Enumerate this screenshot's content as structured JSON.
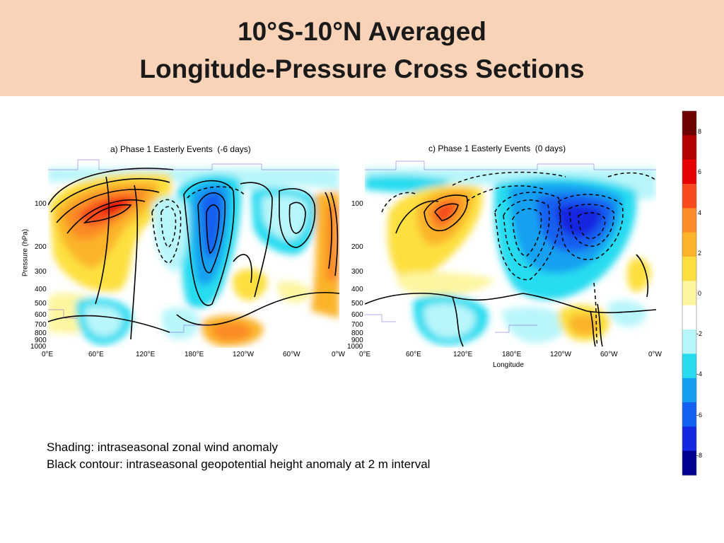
{
  "header": {
    "title_line1": "10°S-10°N Averaged",
    "title_line2": "Longitude-Pressure Cross Sections"
  },
  "chart_data": [
    {
      "type": "heatmap",
      "title": "a) Phase 1 Easterly Events  (-6 days)",
      "xlabel": "",
      "ylabel": "Pressure (hPa)",
      "x_ticks": [
        "0°E",
        "60°E",
        "120°E",
        "180°E",
        "120°W",
        "60°W",
        "0°W"
      ],
      "y_ticks": [
        "100",
        "200",
        "300",
        "400",
        "500",
        "600",
        "700",
        "800",
        "900",
        "1000"
      ],
      "y_scale": "log",
      "ylim": [
        1000,
        70
      ]
    },
    {
      "type": "heatmap",
      "title": "c) Phase 1 Easterly Events  (0 days)",
      "xlabel": "Longitude",
      "ylabel": "",
      "x_ticks": [
        "0°E",
        "60°E",
        "120°E",
        "180°E",
        "120°W",
        "60°W",
        "0°W"
      ],
      "y_ticks": [
        "100",
        "200",
        "300",
        "400",
        "500",
        "600",
        "700",
        "800",
        "900",
        "1000"
      ],
      "y_scale": "log",
      "ylim": [
        1000,
        70
      ]
    }
  ],
  "colorbar": {
    "ticks": [
      "8",
      "6",
      "4",
      "2",
      "0",
      "-2",
      "-4",
      "-6",
      "-8"
    ],
    "colors": [
      "#6e0000",
      "#b40000",
      "#e60000",
      "#f84a1e",
      "#fb8c28",
      "#fbb42a",
      "#fde040",
      "#fdf6a0",
      "#ffffff",
      "#b8f6fa",
      "#28dcf0",
      "#14a0f0",
      "#1460f0",
      "#1428e0",
      "#000090"
    ]
  },
  "notes": {
    "line1": "Shading: intraseasonal zonal wind anomaly",
    "line2": "Black contour: intraseasonal geopotential height anomaly at 2 m interval"
  }
}
